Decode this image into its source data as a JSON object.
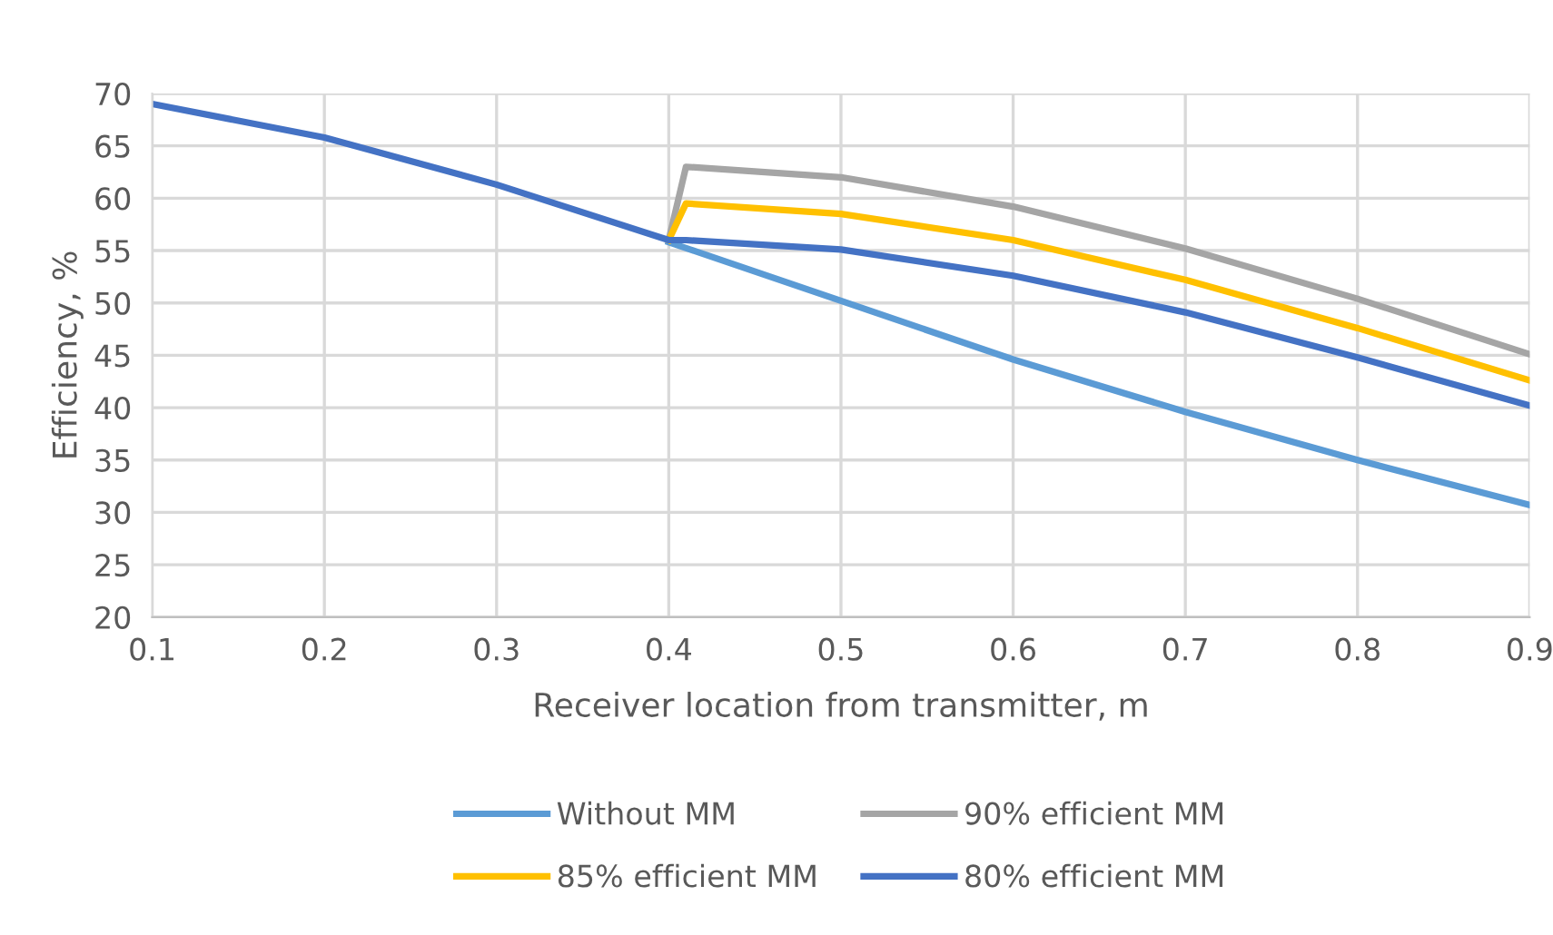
{
  "chart_data": {
    "type": "line",
    "xlabel": "Receiver location from transmitter, m",
    "ylabel": "Efficiency, %",
    "xlim": [
      0.1,
      0.9
    ],
    "xticks": [
      0.1,
      0.2,
      0.3,
      0.4,
      0.5,
      0.6,
      0.7,
      0.8,
      0.9
    ],
    "ylim": [
      20,
      70
    ],
    "yticks": [
      20,
      25,
      30,
      35,
      40,
      45,
      50,
      55,
      60,
      65,
      70
    ],
    "grid": true,
    "legend": "bottom",
    "marker": "none",
    "line_style": "solid",
    "series": [
      {
        "name": "Without MM",
        "color": "#5b9bd5",
        "x": [
          0.4,
          0.5,
          0.6,
          0.7,
          0.8,
          0.9
        ],
        "values": [
          55.8,
          50.2,
          44.6,
          39.6,
          35,
          30.7
        ]
      },
      {
        "name": "90% efficient MM",
        "color": "#a5a5a5",
        "x": [
          0.4,
          0.41,
          0.5,
          0.6,
          0.7,
          0.8,
          0.9
        ],
        "values": [
          56,
          63,
          62,
          59.2,
          55.2,
          50.4,
          45.1
        ]
      },
      {
        "name": "85% efficient MM",
        "color": "#ffc000",
        "x": [
          0.4,
          0.41,
          0.5,
          0.6,
          0.7,
          0.8,
          0.9
        ],
        "values": [
          56,
          59.5,
          58.5,
          56,
          52.2,
          47.6,
          42.6
        ]
      },
      {
        "name": "80% efficient MM",
        "color": "#4472c4",
        "x": [
          0.1,
          0.2,
          0.3,
          0.4,
          0.41,
          0.5,
          0.6,
          0.7,
          0.8,
          0.9
        ],
        "values": [
          69,
          65.8,
          61.3,
          56,
          56,
          55.1,
          52.6,
          49.1,
          44.8,
          40.2
        ]
      }
    ]
  }
}
